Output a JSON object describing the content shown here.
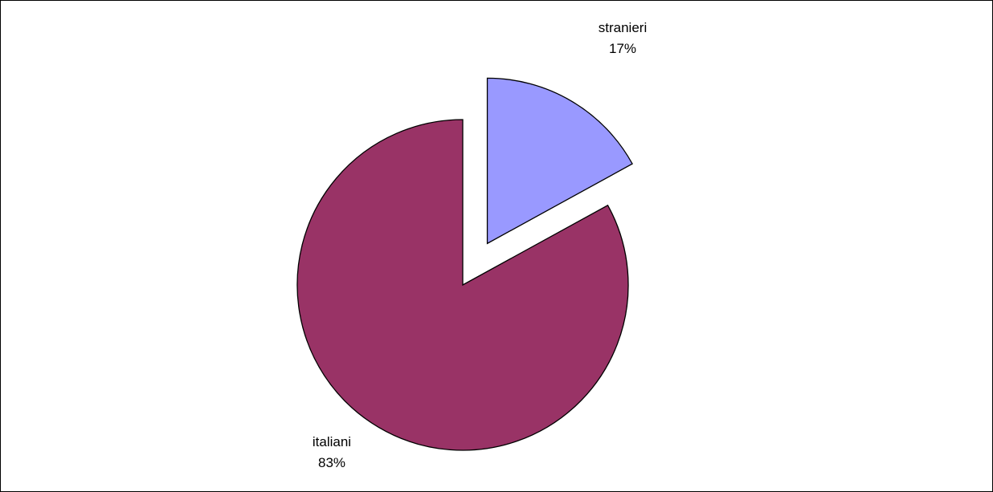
{
  "chart_data": {
    "type": "pie",
    "title": "",
    "start_angle_deg": 0,
    "direction": "clockwise",
    "exploded_slice": "stranieri",
    "slices": [
      {
        "label": "stranieri",
        "value": 17,
        "value_label": "17%",
        "color": "#9999FF"
      },
      {
        "label": "italiani",
        "value": 83,
        "value_label": "83%",
        "color": "#993366"
      }
    ],
    "border_color": "#000000",
    "legend": "none"
  }
}
